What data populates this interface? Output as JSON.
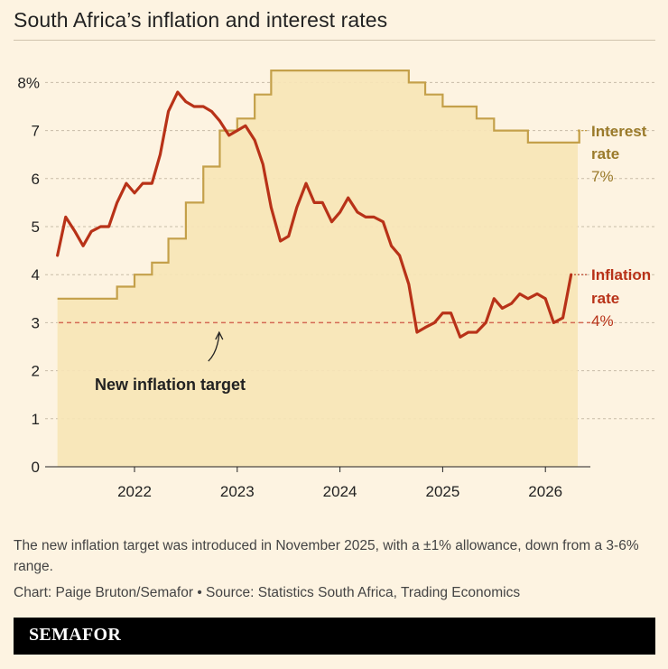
{
  "title": "South Africa’s inflation and interest rates",
  "note": "The new inflation target was introduced in November 2025, with a ±1% allowance, down from a 3-6% range.",
  "credit": "Chart: Paige Bruton/Semafor • Source: Statistics South Africa, Trading Economics",
  "brand": "SEMAFOR",
  "colors": {
    "interest": "#c4a04a",
    "interest_fill": "#f7e5b6",
    "inflation": "#b83218",
    "target": "#d46a55",
    "grid": "#c8bca8",
    "background": "#fdf3e1"
  },
  "chart_data": {
    "type": "line",
    "xlim": [
      2021.25,
      2026.45
    ],
    "ylim": [
      0,
      8.5
    ],
    "x_ticks": [
      2022,
      2023,
      2024,
      2025,
      2026
    ],
    "x_tick_labels": [
      "2022",
      "2023",
      "2024",
      "2025",
      "2026"
    ],
    "y_ticks": [
      0,
      1,
      2,
      3,
      4,
      5,
      6,
      7,
      8
    ],
    "y_tick_labels": [
      "0",
      "1",
      "2",
      "3",
      "4",
      "5",
      "6",
      "7",
      "8%"
    ],
    "grid": "horizontal dashed",
    "series": [
      {
        "name": "Interest rate",
        "label_lines": [
          "Interest",
          "rate"
        ],
        "last_value_label": "7%",
        "style": "step area",
        "x": [
          2021.25,
          2021.83,
          2022.0,
          2022.17,
          2022.33,
          2022.5,
          2022.67,
          2022.83,
          2023.0,
          2023.17,
          2023.33,
          2023.5,
          2023.67,
          2023.83,
          2024.0,
          2024.17,
          2024.33,
          2024.5,
          2024.67,
          2024.83,
          2025.0,
          2025.17,
          2025.33,
          2025.5,
          2025.67,
          2025.83,
          2026.0,
          2026.17,
          2026.33
        ],
        "y": [
          3.5,
          3.75,
          4.0,
          4.25,
          4.75,
          5.5,
          6.25,
          7.0,
          7.25,
          7.75,
          8.25,
          8.25,
          8.25,
          8.25,
          8.25,
          8.25,
          8.25,
          8.25,
          8.0,
          7.75,
          7.5,
          7.5,
          7.25,
          7.0,
          7.0,
          6.75,
          6.75,
          6.75,
          7.0
        ]
      },
      {
        "name": "Inflation rate",
        "label_lines": [
          "Inflation",
          "rate"
        ],
        "last_value_label": "4%",
        "style": "line",
        "x": [
          2021.25,
          2021.33,
          2021.42,
          2021.5,
          2021.58,
          2021.67,
          2021.75,
          2021.83,
          2021.92,
          2022.0,
          2022.08,
          2022.17,
          2022.25,
          2022.33,
          2022.42,
          2022.5,
          2022.58,
          2022.67,
          2022.75,
          2022.83,
          2022.92,
          2023.0,
          2023.08,
          2023.17,
          2023.25,
          2023.33,
          2023.42,
          2023.5,
          2023.58,
          2023.67,
          2023.75,
          2023.83,
          2023.92,
          2024.0,
          2024.08,
          2024.17,
          2024.25,
          2024.33,
          2024.42,
          2024.5,
          2024.58,
          2024.67,
          2024.75,
          2024.83,
          2024.92,
          2025.0,
          2025.08,
          2025.17,
          2025.25,
          2025.33,
          2025.42,
          2025.5,
          2025.58,
          2025.67,
          2025.75,
          2025.83,
          2025.92,
          2026.0,
          2026.08,
          2026.17,
          2026.25
        ],
        "y": [
          4.4,
          5.2,
          4.9,
          4.6,
          4.9,
          5.0,
          5.0,
          5.5,
          5.9,
          5.7,
          5.9,
          5.9,
          6.5,
          7.4,
          7.8,
          7.6,
          7.5,
          7.5,
          7.4,
          7.2,
          6.9,
          7.0,
          7.1,
          6.8,
          6.3,
          5.4,
          4.7,
          4.8,
          5.4,
          5.9,
          5.5,
          5.5,
          5.1,
          5.3,
          5.6,
          5.3,
          5.2,
          5.2,
          5.1,
          4.6,
          4.4,
          3.8,
          2.8,
          2.9,
          3.0,
          3.2,
          3.2,
          2.7,
          2.8,
          2.8,
          3.0,
          3.5,
          3.3,
          3.4,
          3.6,
          3.5,
          3.6,
          3.5,
          3.0,
          3.1,
          4.0
        ]
      }
    ],
    "reference_line": {
      "name": "New inflation target",
      "y": 3.0,
      "style": "dashed"
    },
    "annotations": [
      {
        "text": "New inflation target",
        "points_to_x": 2023.0,
        "points_to_y": 2.95
      }
    ]
  }
}
